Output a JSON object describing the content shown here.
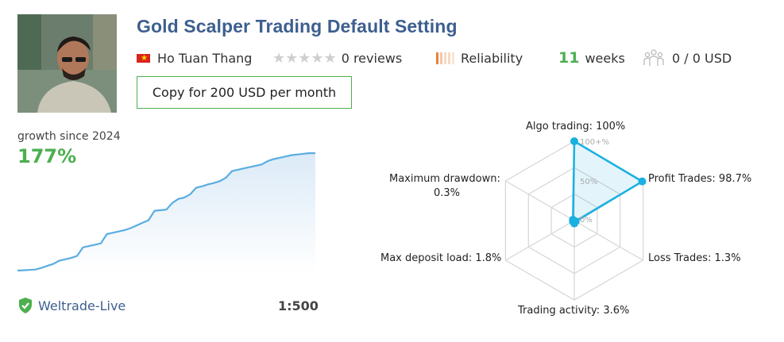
{
  "title": "Gold Scalper Trading Default Setting",
  "author": {
    "name": "Ho Tuan Thang",
    "country_flag": "vietnam-flag"
  },
  "reviews": {
    "count_text": "0 reviews",
    "rating": 0,
    "max": 5
  },
  "reliability": {
    "label": "Reliability",
    "level": 0.25,
    "colors": [
      "#e8833a",
      "#f7d9c4"
    ]
  },
  "weeks": {
    "value": "11",
    "label": "weeks"
  },
  "subscribers": {
    "text": "0 / 0 USD",
    "icon": "subscribers-icon"
  },
  "copy_button": {
    "label": "Copy for 200 USD per month"
  },
  "growth": {
    "label": "growth since 2024",
    "value": "177%"
  },
  "broker": {
    "name": "Weltrade-Live",
    "icon": "shield-check-icon"
  },
  "leverage": "1:500",
  "colors": {
    "title": "#3d5f8f",
    "accent": "#4caf50",
    "chart_line": "#5aade0",
    "radar": "#1ab0e0"
  },
  "chart_data": [
    {
      "type": "area",
      "title": "",
      "x": [
        0,
        1,
        2,
        3,
        4,
        5,
        6,
        7,
        8,
        9,
        10,
        11,
        12,
        13,
        14,
        15,
        16,
        17,
        18,
        19,
        20,
        21,
        22,
        23,
        24,
        25,
        26,
        27,
        28,
        29,
        30,
        31,
        32,
        33,
        34,
        35,
        36,
        37,
        38,
        39,
        40,
        41,
        42,
        43,
        44,
        45,
        46,
        47,
        48,
        49,
        50
      ],
      "values": [
        0,
        0.5,
        1,
        1.5,
        4,
        7,
        10,
        15,
        17,
        19,
        22,
        35,
        37,
        39,
        41,
        55,
        57,
        59,
        61,
        64,
        68,
        72,
        76,
        90,
        91,
        92,
        102,
        108,
        110,
        115,
        125,
        127,
        130,
        132,
        135,
        140,
        150,
        152,
        154,
        156,
        158,
        160,
        165,
        168,
        170,
        172,
        174,
        175,
        176,
        177,
        177
      ],
      "ylabel": "",
      "xlabel": ""
    },
    {
      "type": "radar",
      "axes": [
        {
          "label": "Algo trading: 100%",
          "value": 100
        },
        {
          "label": "Profit Trades: 98.7%",
          "value": 98.7
        },
        {
          "label": "Loss Trades: 1.3%",
          "value": 1.3
        },
        {
          "label": "Trading activity: 3.6%",
          "value": 3.6
        },
        {
          "label": "Max deposit load: 1.8%",
          "value": 1.8
        },
        {
          "label": "Maximum drawdown:",
          "label2": "0.3%",
          "value": 0.3
        }
      ],
      "ticks": [
        "100+%",
        "50%",
        "0%"
      ],
      "range": [
        0,
        100
      ]
    }
  ]
}
